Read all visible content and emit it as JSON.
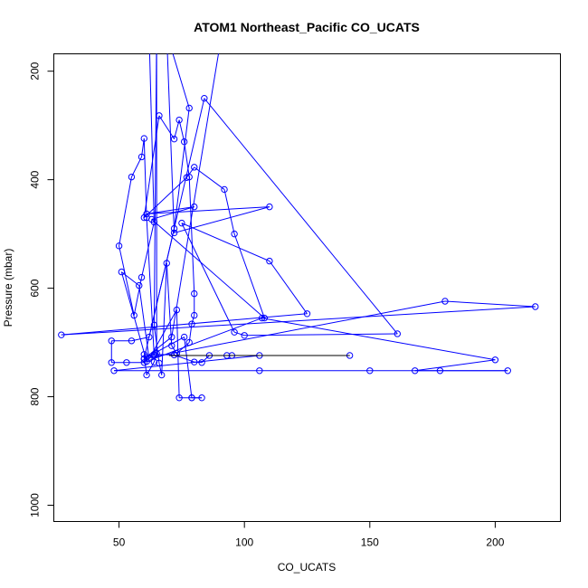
{
  "chart_data": {
    "type": "line",
    "title": "ATOM1 Northeast_Pacific CO_UCATS",
    "xlabel": "CO_UCATS",
    "ylabel": "Pressure (mbar)",
    "xlim": [
      24,
      226
    ],
    "ylim": [
      1030,
      168
    ],
    "y_reversed": true,
    "grid": false,
    "legend": "none",
    "xticks": [
      50,
      100,
      150,
      200
    ],
    "yticks": [
      200,
      400,
      600,
      800,
      1000
    ],
    "colors": {
      "main": "#0000ff",
      "highlight": "#000000"
    },
    "series": [
      {
        "color": "#0000ff",
        "marker": "circle",
        "points": [
          [
            62,
            130
          ],
          [
            64,
            478
          ],
          [
            59,
            580
          ],
          [
            56,
            650
          ],
          [
            50,
            522
          ],
          [
            55,
            395
          ],
          [
            59,
            358
          ],
          [
            60,
            324
          ],
          [
            61,
            470
          ],
          [
            64,
            724
          ],
          [
            60,
            722
          ],
          [
            61,
            760
          ],
          [
            64,
            736
          ],
          [
            65,
            720
          ],
          [
            65,
            130
          ],
          [
            64,
            668
          ],
          [
            66,
            738
          ],
          [
            67,
            760
          ],
          [
            69,
            554
          ],
          [
            71,
            706
          ],
          [
            73,
            720
          ],
          [
            78,
            700
          ],
          [
            79,
            666
          ],
          [
            80,
            650
          ],
          [
            80,
            610
          ],
          [
            78,
            395
          ],
          [
            76,
            330
          ],
          [
            74,
            290
          ],
          [
            72,
            325
          ],
          [
            66,
            282
          ],
          [
            60,
            470
          ],
          [
            77,
            396
          ],
          [
            80,
            377
          ],
          [
            92,
            418
          ],
          [
            96,
            500
          ],
          [
            108,
            655
          ],
          [
            63,
            473
          ],
          [
            80,
            450
          ],
          [
            61,
            463
          ],
          [
            110,
            450
          ],
          [
            72,
            498
          ],
          [
            69,
            130
          ],
          [
            78,
            268
          ],
          [
            72,
            490
          ],
          [
            62,
            690
          ],
          [
            55,
            697
          ],
          [
            47,
            697
          ],
          [
            47,
            737
          ],
          [
            53,
            737
          ],
          [
            60,
            737
          ],
          [
            64,
            722
          ],
          [
            72,
            723
          ],
          [
            80,
            736
          ],
          [
            83,
            737
          ],
          [
            86,
            724
          ],
          [
            93,
            724
          ],
          [
            95,
            724
          ],
          [
            142,
            724
          ],
          [
            106,
            724
          ],
          [
            48,
            752
          ],
          [
            106,
            752
          ],
          [
            150,
            752
          ],
          [
            178,
            752
          ],
          [
            205,
            752
          ],
          [
            168,
            752
          ],
          [
            200,
            732
          ],
          [
            107,
            655
          ],
          [
            61,
            735
          ],
          [
            51,
            570
          ],
          [
            58,
            595
          ],
          [
            62,
            730
          ],
          [
            73,
            640
          ],
          [
            74,
            802
          ],
          [
            79,
            802
          ],
          [
            83,
            802
          ],
          [
            79,
            802
          ],
          [
            76,
            690
          ],
          [
            60,
            730
          ],
          [
            180,
            624
          ],
          [
            216,
            634
          ],
          [
            27,
            686
          ],
          [
            125,
            647
          ],
          [
            110,
            550
          ],
          [
            75,
            480
          ],
          [
            96,
            681
          ],
          [
            100,
            687
          ],
          [
            161,
            684
          ],
          [
            84,
            250
          ],
          [
            60,
            730
          ],
          [
            71,
            690
          ],
          [
            91,
            130
          ]
        ]
      }
    ],
    "highlight_segment": {
      "x": [
        70,
        142
      ],
      "y": [
        724,
        724
      ],
      "color": "#000000"
    }
  }
}
